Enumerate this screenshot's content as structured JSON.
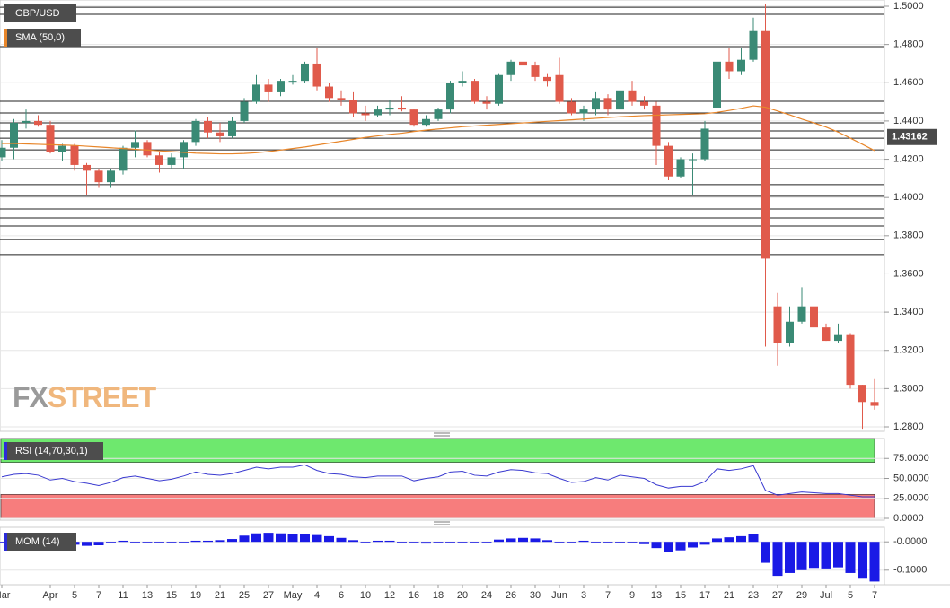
{
  "chart_data": [
    {
      "type": "candlestick",
      "title": "GBP/USD",
      "categories": [
        "Mar",
        null,
        null,
        null,
        "Apr",
        null,
        "5",
        null,
        "7",
        null,
        "11",
        null,
        "13",
        null,
        "15",
        null,
        "19",
        null,
        "21",
        null,
        "25",
        null,
        "27",
        null,
        "May",
        null,
        "4",
        null,
        "6",
        null,
        "10",
        null,
        "12",
        null,
        "16",
        null,
        "18",
        null,
        "20",
        null,
        "24",
        null,
        "26",
        null,
        "30",
        null,
        "Jun",
        null,
        "3",
        null,
        "7",
        null,
        "9",
        null,
        "13",
        null,
        "15",
        null,
        "17",
        null,
        "21",
        null,
        "23",
        null,
        "27",
        null,
        "29",
        null,
        "Jul",
        null,
        "5",
        null,
        "7"
      ],
      "open": [
        1.421,
        1.426,
        1.439,
        1.44,
        1.438,
        1.424,
        1.427,
        1.417,
        1.414,
        1.408,
        1.414,
        1.426,
        1.429,
        1.422,
        1.417,
        1.421,
        1.429,
        1.44,
        1.434,
        1.432,
        1.44,
        1.45,
        1.459,
        1.455,
        1.461,
        1.461,
        1.47,
        1.458,
        1.452,
        1.451,
        1.444,
        1.443,
        1.446,
        1.447,
        1.446,
        1.438,
        1.441,
        1.446,
        1.46,
        1.461,
        1.45,
        1.449,
        1.464,
        1.471,
        1.469,
        1.463,
        1.464,
        1.45,
        1.444,
        1.446,
        1.452,
        1.446,
        1.456,
        1.45,
        1.448,
        1.427,
        1.411,
        1.42,
        1.42,
        1.447,
        1.471,
        1.466,
        1.472,
        1.487,
        1.343,
        1.324,
        1.335,
        1.343,
        1.332,
        1.325,
        1.328,
        1.302,
        1.293
      ],
      "high": [
        1.43,
        1.441,
        1.446,
        1.443,
        1.44,
        1.428,
        1.428,
        1.418,
        1.415,
        1.415,
        1.427,
        1.435,
        1.43,
        1.424,
        1.423,
        1.43,
        1.441,
        1.442,
        1.439,
        1.442,
        1.452,
        1.464,
        1.462,
        1.462,
        1.464,
        1.471,
        1.478,
        1.46,
        1.456,
        1.455,
        1.448,
        1.448,
        1.451,
        1.453,
        1.446,
        1.443,
        1.447,
        1.461,
        1.466,
        1.462,
        1.453,
        1.465,
        1.472,
        1.474,
        1.471,
        1.465,
        1.473,
        1.452,
        1.448,
        1.455,
        1.454,
        1.467,
        1.461,
        1.453,
        1.45,
        1.429,
        1.421,
        1.423,
        1.44,
        1.472,
        1.478,
        1.478,
        1.494,
        1.501,
        1.35,
        1.343,
        1.353,
        1.35,
        1.334,
        1.334,
        1.329,
        1.302,
        1.305
      ],
      "low": [
        1.419,
        1.42,
        1.436,
        1.437,
        1.423,
        1.419,
        1.414,
        1.401,
        1.405,
        1.405,
        1.412,
        1.421,
        1.421,
        1.413,
        1.415,
        1.415,
        1.427,
        1.431,
        1.429,
        1.431,
        1.439,
        1.449,
        1.45,
        1.453,
        1.459,
        1.46,
        1.456,
        1.45,
        1.448,
        1.442,
        1.44,
        1.442,
        1.443,
        1.445,
        1.437,
        1.437,
        1.44,
        1.444,
        1.458,
        1.449,
        1.446,
        1.448,
        1.461,
        1.466,
        1.461,
        1.458,
        1.449,
        1.443,
        1.44,
        1.443,
        1.443,
        1.444,
        1.448,
        1.446,
        1.417,
        1.409,
        1.41,
        1.401,
        1.419,
        1.444,
        1.462,
        1.464,
        1.471,
        1.322,
        1.312,
        1.322,
        1.334,
        1.321,
        1.325,
        1.324,
        1.3,
        1.279,
        1.289
      ],
      "close": [
        1.426,
        1.439,
        1.44,
        1.438,
        1.424,
        1.427,
        1.417,
        1.414,
        1.408,
        1.414,
        1.426,
        1.429,
        1.422,
        1.417,
        1.421,
        1.429,
        1.44,
        1.434,
        1.432,
        1.44,
        1.45,
        1.459,
        1.455,
        1.461,
        1.461,
        1.47,
        1.458,
        1.452,
        1.451,
        1.444,
        1.443,
        1.446,
        1.447,
        1.446,
        1.438,
        1.441,
        1.446,
        1.46,
        1.461,
        1.45,
        1.449,
        1.464,
        1.471,
        1.469,
        1.463,
        1.461,
        1.45,
        1.444,
        1.446,
        1.452,
        1.446,
        1.456,
        1.45,
        1.448,
        1.427,
        1.411,
        1.42,
        1.42,
        1.436,
        1.471,
        1.466,
        1.472,
        1.487,
        1.368,
        1.324,
        1.335,
        1.343,
        1.332,
        1.325,
        1.328,
        1.302,
        1.293,
        1.291
      ],
      "up_color": "#3a8a75",
      "down_color": "#e05a4b",
      "sma": {
        "name": "SMA (50,0)",
        "color": "#e8862a",
        "values": [
          1.4282,
          1.4282,
          1.428,
          1.4278,
          1.4276,
          1.4274,
          1.4272,
          1.4268,
          1.4264,
          1.426,
          1.4256,
          1.4252,
          1.4248,
          1.4244,
          1.424,
          1.4236,
          1.4232,
          1.423,
          1.4228,
          1.4228,
          1.423,
          1.4234,
          1.424,
          1.4248,
          1.4256,
          1.4264,
          1.4274,
          1.4284,
          1.4294,
          1.4304,
          1.4314,
          1.4322,
          1.433,
          1.4336,
          1.4345,
          1.4352,
          1.4358,
          1.4364,
          1.437,
          1.4374,
          1.4378,
          1.4382,
          1.4386,
          1.439,
          1.4394,
          1.4398,
          1.4402,
          1.4406,
          1.441,
          1.4414,
          1.4418,
          1.4422,
          1.4425,
          1.4428,
          1.443,
          1.4432,
          1.4434,
          1.4436,
          1.4438,
          1.4445,
          1.4455,
          1.4466,
          1.4479,
          1.4472,
          1.4452,
          1.4432,
          1.441,
          1.439,
          1.4368,
          1.4342,
          1.431,
          1.4278,
          1.4245
        ]
      },
      "levels": [
        1.4995,
        1.4958,
        1.4789,
        1.4503,
        1.4442,
        1.439,
        1.4348,
        1.431,
        1.4249,
        1.4151,
        1.4067,
        1.4006,
        1.394,
        1.3893,
        1.3851,
        1.378,
        1.3701
      ],
      "ylim": [
        1.28,
        1.5
      ],
      "yticks": [
        {
          "value": 1.5,
          "label": "1.5000"
        },
        {
          "value": 1.48,
          "label": "1.4800"
        },
        {
          "value": 1.46,
          "label": "1.4600"
        },
        {
          "value": 1.44,
          "label": "1.4400"
        },
        {
          "value": 1.42,
          "label": "1.4200"
        },
        {
          "value": 1.4,
          "label": "1.4000"
        },
        {
          "value": 1.38,
          "label": "1.3800"
        },
        {
          "value": 1.36,
          "label": "1.3600"
        },
        {
          "value": 1.34,
          "label": "1.3400"
        },
        {
          "value": 1.32,
          "label": "1.3200"
        },
        {
          "value": 1.3,
          "label": "1.3000"
        },
        {
          "value": 1.28,
          "label": "1.2800"
        }
      ],
      "last_price": 1.43162,
      "grid": true,
      "watermark": [
        "FX",
        "STREET"
      ]
    },
    {
      "type": "line",
      "title": "RSI (14,70,30,1)",
      "color": "#3a3ad0",
      "values": [
        52,
        55,
        56,
        54,
        48,
        50,
        46,
        44,
        41,
        45,
        51,
        53,
        50,
        47,
        49,
        53,
        58,
        55,
        54,
        56,
        60,
        64,
        62,
        64,
        64,
        67,
        60,
        56,
        55,
        52,
        51,
        53,
        53,
        53,
        47,
        50,
        52,
        58,
        59,
        54,
        53,
        58,
        61,
        60,
        57,
        56,
        50,
        45,
        46,
        51,
        48,
        54,
        52,
        50,
        42,
        38,
        40,
        40,
        46,
        62,
        60,
        62,
        66,
        35,
        29,
        31,
        33,
        32,
        31,
        31,
        29,
        27,
        27
      ],
      "bands": [
        {
          "from": 70,
          "to": 100,
          "color": "#6ee86e"
        },
        {
          "from": 0,
          "to": 30,
          "color": "#f77d7d"
        }
      ],
      "ylim": [
        0,
        100
      ],
      "yticks": [
        {
          "value": 75,
          "label": "75.0000"
        },
        {
          "value": 50,
          "label": "50.0000"
        },
        {
          "value": 25,
          "label": "25.0000"
        },
        {
          "value": 0,
          "label": "0.0000"
        }
      ]
    },
    {
      "type": "bar",
      "title": "MOM (14)",
      "color": "#1a1ae6",
      "values": [
        0.0,
        0.0,
        0.001,
        0.0,
        0.0,
        -0.004,
        -0.01,
        -0.014,
        -0.012,
        -0.004,
        0.004,
        0.0,
        0.0,
        -0.002,
        -0.004,
        -0.002,
        0.004,
        0.004,
        0.006,
        0.01,
        0.022,
        0.03,
        0.032,
        0.03,
        0.028,
        0.026,
        0.024,
        0.02,
        0.014,
        0.006,
        0.0,
        0.004,
        0.004,
        0.0,
        -0.004,
        -0.006,
        -0.002,
        0.0,
        0.0,
        -0.002,
        0.0,
        0.008,
        0.012,
        0.014,
        0.012,
        0.006,
        0.0,
        0.0,
        0.004,
        0.0,
        -0.002,
        -0.002,
        -0.004,
        -0.008,
        -0.022,
        -0.036,
        -0.03,
        -0.02,
        -0.01,
        0.012,
        0.016,
        0.02,
        0.028,
        -0.074,
        -0.12,
        -0.11,
        -0.1,
        -0.092,
        -0.094,
        -0.09,
        -0.11,
        -0.13,
        -0.14
      ],
      "ylim": [
        -0.145,
        0.045
      ],
      "yticks": [
        {
          "value": 0,
          "label": "-0.0000"
        },
        {
          "value": -0.1,
          "label": "-0.1000"
        }
      ]
    }
  ]
}
